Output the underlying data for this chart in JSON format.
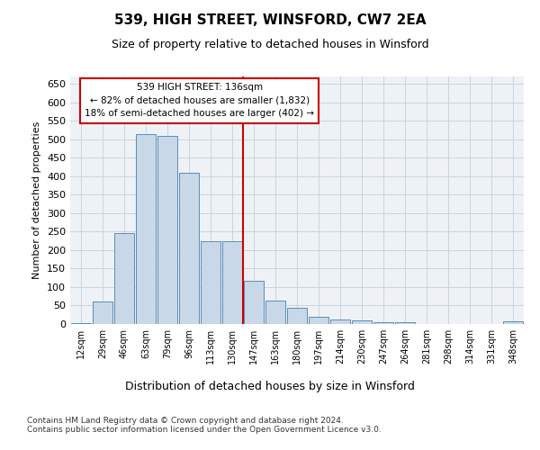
{
  "title": "539, HIGH STREET, WINSFORD, CW7 2EA",
  "subtitle": "Size of property relative to detached houses in Winsford",
  "xlabel": "Distribution of detached houses by size in Winsford",
  "ylabel": "Number of detached properties",
  "categories": [
    "12sqm",
    "29sqm",
    "46sqm",
    "63sqm",
    "79sqm",
    "96sqm",
    "113sqm",
    "130sqm",
    "147sqm",
    "163sqm",
    "180sqm",
    "197sqm",
    "214sqm",
    "230sqm",
    "247sqm",
    "264sqm",
    "281sqm",
    "298sqm",
    "314sqm",
    "331sqm",
    "348sqm"
  ],
  "values": [
    3,
    60,
    245,
    515,
    510,
    410,
    225,
    225,
    118,
    63,
    45,
    20,
    11,
    9,
    6,
    5,
    0,
    0,
    0,
    0,
    7
  ],
  "bar_color": "#c8d8e8",
  "bar_edge_color": "#5b8db8",
  "grid_color": "#c8d4e0",
  "bg_color": "#eef2f7",
  "vline_color": "#cc0000",
  "annotation_text": "539 HIGH STREET: 136sqm\n← 82% of detached houses are smaller (1,832)\n18% of semi-detached houses are larger (402) →",
  "annotation_box_color": "#cc0000",
  "footer": "Contains HM Land Registry data © Crown copyright and database right 2024.\nContains public sector information licensed under the Open Government Licence v3.0.",
  "ylim": [
    0,
    670
  ],
  "yticks": [
    0,
    50,
    100,
    150,
    200,
    250,
    300,
    350,
    400,
    450,
    500,
    550,
    600,
    650
  ],
  "vline_pos": 7.5
}
